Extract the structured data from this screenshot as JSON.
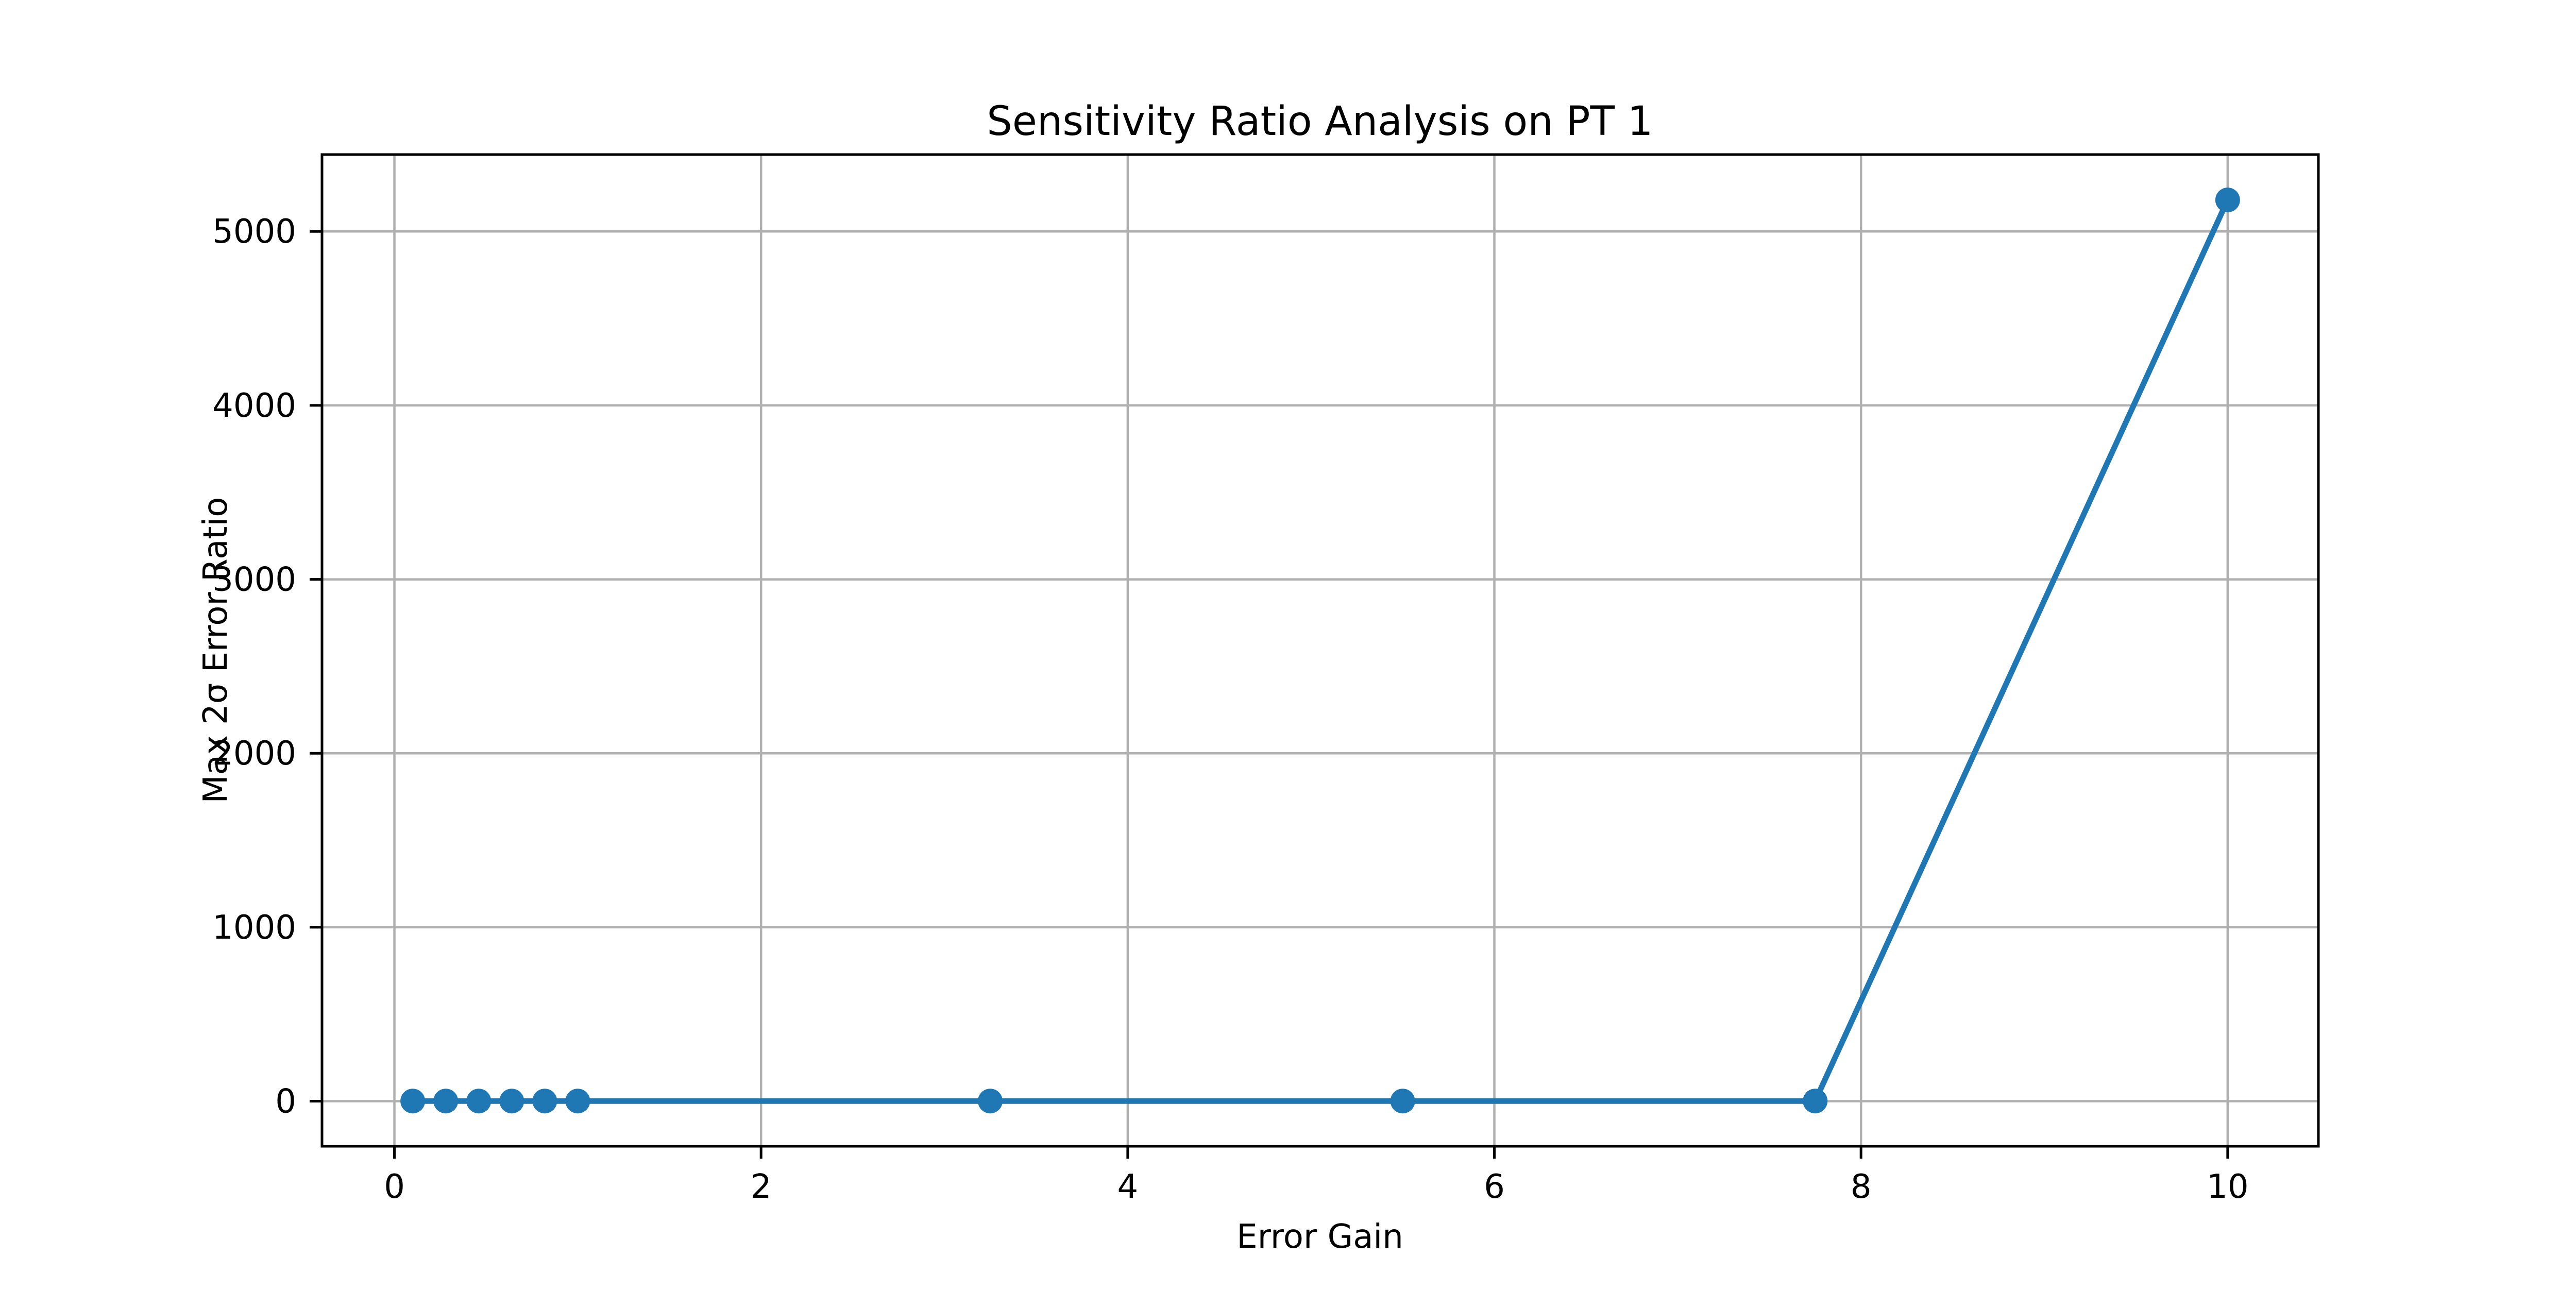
{
  "chart_data": {
    "type": "line",
    "title": "Sensitivity Ratio Analysis on PT 1",
    "xlabel": "Error Gain",
    "ylabel": "Max 2σ Error Ratio",
    "x": [
      0.1,
      0.28,
      0.46,
      0.64,
      0.82,
      1.0,
      3.25,
      5.5,
      7.75,
      10.0
    ],
    "y": [
      1,
      1,
      1,
      1,
      1,
      1,
      1,
      1,
      1,
      5181
    ],
    "xlim": [
      -0.395,
      10.495
    ],
    "ylim": [
      -259,
      5442
    ],
    "xticks": [
      0,
      2,
      4,
      6,
      8,
      10
    ],
    "yticks": [
      0,
      1000,
      2000,
      3000,
      4000,
      5000
    ],
    "grid": true,
    "legend": false,
    "line_color": "#1f77b4",
    "marker": "circle",
    "grid_color": "#b0b0b0",
    "spine_color": "#000000",
    "tick_color": "#000000",
    "background": "#ffffff"
  }
}
